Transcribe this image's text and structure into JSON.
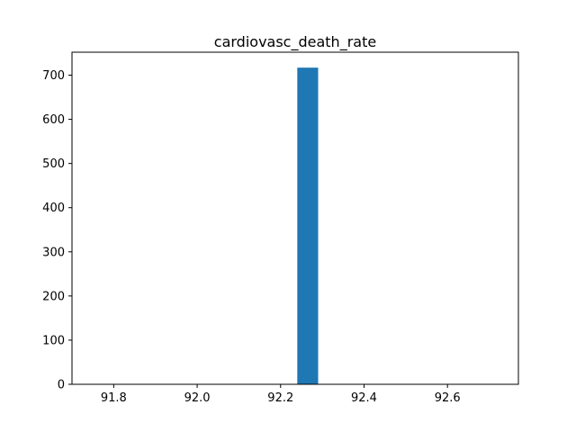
{
  "chart_data": {
    "type": "bar",
    "title": "cardiovasc_death_rate",
    "xlabel": "",
    "ylabel": "",
    "xlim": [
      91.7,
      92.77
    ],
    "ylim": [
      0,
      752
    ],
    "bins": [
      {
        "x_start": 92.24,
        "x_end": 92.29,
        "count": 717
      }
    ],
    "xticks": [
      {
        "value": 91.8,
        "label": "91.8"
      },
      {
        "value": 92.0,
        "label": "92.0"
      },
      {
        "value": 92.2,
        "label": "92.2"
      },
      {
        "value": 92.4,
        "label": "92.4"
      },
      {
        "value": 92.6,
        "label": "92.6"
      }
    ],
    "yticks": [
      {
        "value": 0,
        "label": "0"
      },
      {
        "value": 100,
        "label": "100"
      },
      {
        "value": 200,
        "label": "200"
      },
      {
        "value": 300,
        "label": "300"
      },
      {
        "value": 400,
        "label": "400"
      },
      {
        "value": 500,
        "label": "500"
      },
      {
        "value": 600,
        "label": "600"
      },
      {
        "value": 700,
        "label": "700"
      }
    ],
    "grid": false,
    "colors": {
      "bar": "#1f77b4",
      "axis": "#000000",
      "background": "#ffffff"
    }
  }
}
